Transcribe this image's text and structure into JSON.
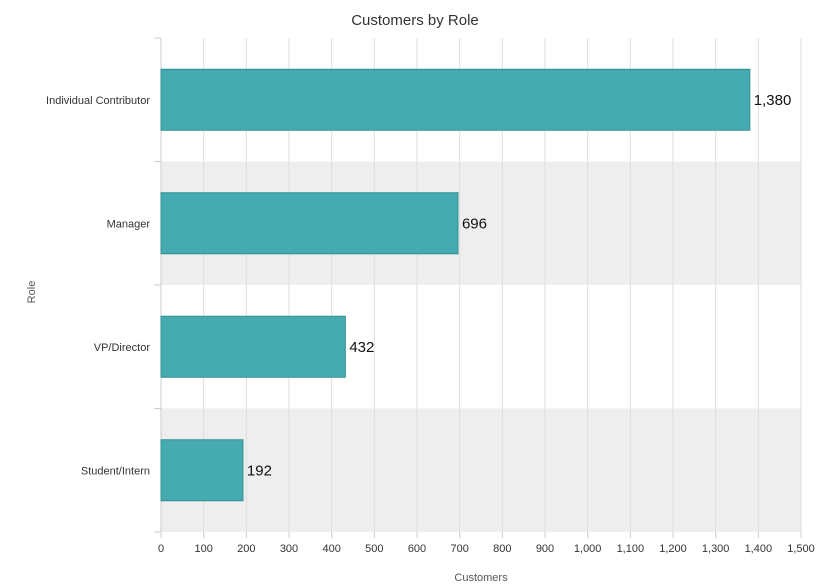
{
  "chart_data": {
    "type": "bar",
    "orientation": "horizontal",
    "title": "Customers by Role",
    "xlabel": "Customers",
    "ylabel": "Role",
    "categories": [
      "Individual Contributor",
      "Manager",
      "VP/Director",
      "Student/Intern"
    ],
    "values": [
      1380,
      696,
      432,
      192
    ],
    "value_labels": [
      "1,380",
      "696",
      "432",
      "192"
    ],
    "xlim": [
      0,
      1500
    ],
    "x_ticks": [
      0,
      100,
      200,
      300,
      400,
      500,
      600,
      700,
      800,
      900,
      1000,
      1100,
      1200,
      1300,
      1400,
      1500
    ],
    "x_tick_labels": [
      "0",
      "100",
      "200",
      "300",
      "400",
      "500",
      "600",
      "700",
      "800",
      "900",
      "1,000",
      "1,100",
      "1,200",
      "1,300",
      "1,400",
      "1,500"
    ],
    "grid": true,
    "legend": "none",
    "colors": {
      "bar": "#46abb0",
      "bar_stroke": "#2f8f94",
      "band": "#eeeeee",
      "grid": "#dddddd",
      "axis": "#cccccc"
    }
  }
}
